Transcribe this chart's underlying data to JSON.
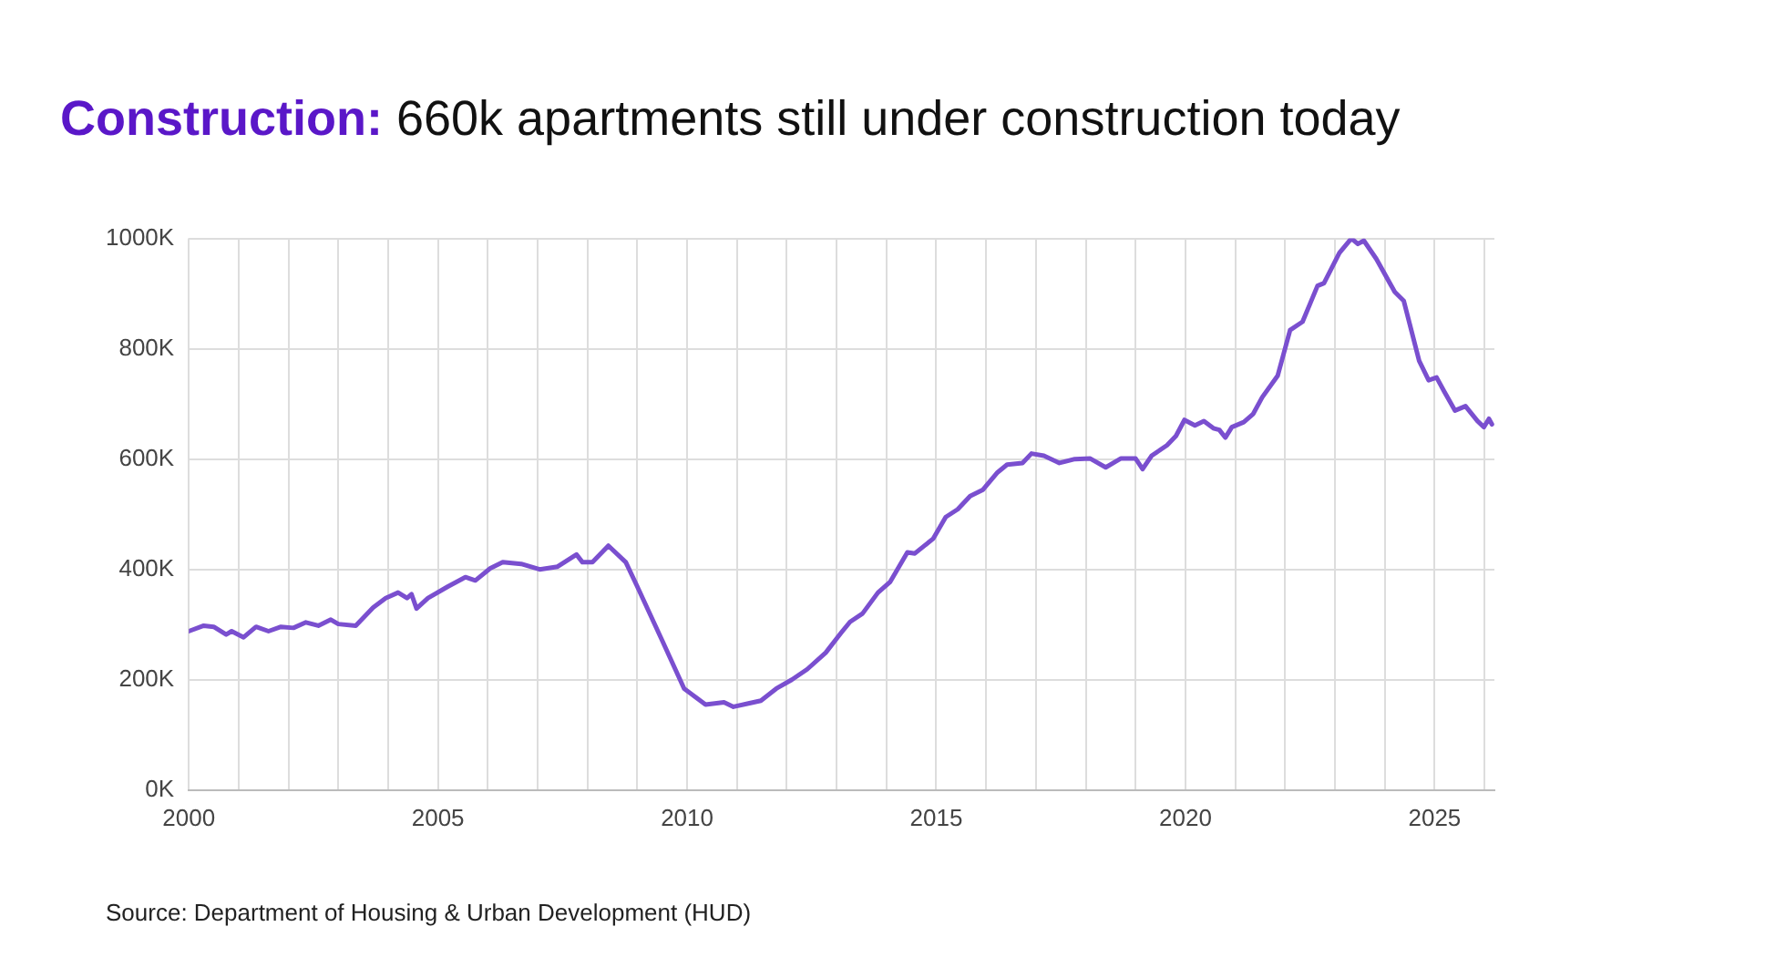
{
  "chart_data": {
    "type": "line",
    "title": "Construction: 660k apartments still under construction today",
    "annotations": [
      "Source: Department of Housing & Urban Development (HUD)"
    ],
    "x": [
      2000.0,
      2000.3,
      2000.5,
      2000.75,
      2000.86,
      2001.1,
      2001.35,
      2001.6,
      2001.85,
      2002.1,
      2002.35,
      2002.6,
      2002.85,
      2003.0,
      2003.35,
      2003.7,
      2003.95,
      2004.2,
      2004.38,
      2004.47,
      2004.57,
      2004.8,
      2005.2,
      2005.55,
      2005.75,
      2006.05,
      2006.3,
      2006.67,
      2007.04,
      2007.4,
      2007.78,
      2007.9,
      2008.1,
      2008.42,
      2008.77,
      2009.0,
      2009.5,
      2009.94,
      2010.37,
      2010.74,
      2010.93,
      2011.23,
      2011.48,
      2011.79,
      2012.1,
      2012.41,
      2012.78,
      2013.09,
      2013.27,
      2013.52,
      2013.83,
      2014.07,
      2014.42,
      2014.57,
      2014.94,
      2015.19,
      2015.43,
      2015.68,
      2015.93,
      2016.23,
      2016.42,
      2016.73,
      2016.91,
      2017.16,
      2017.47,
      2017.78,
      2018.09,
      2018.4,
      2018.7,
      2019.0,
      2019.14,
      2019.32,
      2019.63,
      2019.81,
      2019.98,
      2020.19,
      2020.37,
      2020.56,
      2020.68,
      2020.8,
      2020.93,
      2021.17,
      2021.36,
      2021.54,
      2021.85,
      2022.1,
      2022.35,
      2022.65,
      2022.78,
      2023.09,
      2023.33,
      2023.46,
      2023.58,
      2023.83,
      2024.2,
      2024.38,
      2024.69,
      2024.88,
      2025.04,
      2025.19,
      2025.41,
      2025.62,
      2025.86,
      2025.99,
      2026.09,
      2026.15
    ],
    "series": [
      {
        "color": "#7a4fcf",
        "values": [
          288,
          298,
          296,
          282,
          288,
          277,
          296,
          288,
          296,
          294,
          304,
          298,
          309,
          301,
          298,
          331,
          348,
          358,
          348,
          355,
          329,
          348,
          369,
          386,
          380,
          402,
          413,
          410,
          400,
          405,
          427,
          413,
          413,
          443,
          413,
          369,
          271,
          184,
          155,
          159,
          151,
          157,
          162,
          184,
          200,
          219,
          249,
          285,
          305,
          320,
          358,
          377,
          431,
          429,
          456,
          495,
          509,
          533,
          544,
          576,
          590,
          593,
          610,
          606,
          593,
          600,
          601,
          585,
          601,
          601,
          582,
          606,
          625,
          642,
          671,
          661,
          669,
          656,
          653,
          639,
          658,
          667,
          682,
          712,
          751,
          834,
          849,
          914,
          919,
          974,
          1000,
          990,
          996,
          963,
          903,
          887,
          778,
          743,
          748,
          723,
          688,
          696,
          669,
          658,
          673,
          663
        ]
      }
    ],
    "xlim": [
      2000,
      2026.2
    ],
    "xticks": [
      2000,
      {
        "value": 2001,
        "label": null
      },
      {
        "value": 2002,
        "label": null
      },
      {
        "value": 2003,
        "label": null
      },
      {
        "value": 2004,
        "label": null
      },
      2005,
      {
        "value": 2006,
        "label": null
      },
      {
        "value": 2007,
        "label": null
      },
      {
        "value": 2008,
        "label": null
      },
      {
        "value": 2009,
        "label": null
      },
      2010,
      {
        "value": 2011,
        "label": null
      },
      {
        "value": 2012,
        "label": null
      },
      {
        "value": 2013,
        "label": null
      },
      {
        "value": 2014,
        "label": null
      },
      2015,
      {
        "value": 2016,
        "label": null
      },
      {
        "value": 2017,
        "label": null
      },
      {
        "value": 2018,
        "label": null
      },
      {
        "value": 2019,
        "label": null
      },
      2020,
      {
        "value": 2021,
        "label": null
      },
      {
        "value": 2022,
        "label": null
      },
      {
        "value": 2023,
        "label": null
      },
      {
        "value": 2024,
        "label": null
      },
      2025,
      {
        "value": 2026,
        "label": null
      }
    ],
    "ylim": [
      0,
      1000
    ],
    "yticks": [
      {
        "value": 0,
        "label": "0K"
      },
      {
        "value": 200,
        "label": "200K"
      },
      {
        "value": 400,
        "label": "400K"
      },
      {
        "value": 600,
        "label": "600K"
      },
      {
        "value": 800,
        "label": "800K"
      },
      {
        "value": 1000,
        "label": "1000K"
      }
    ],
    "grid": true,
    "legend": false,
    "marker": "none",
    "line_style": "solid"
  }
}
